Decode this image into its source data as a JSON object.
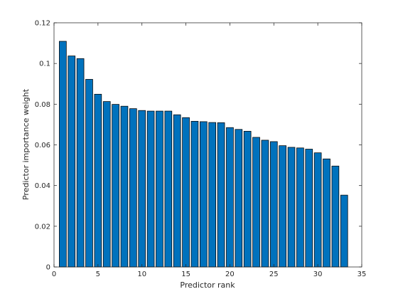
{
  "chart_data": {
    "type": "bar",
    "title": "",
    "xlabel": "Predictor rank",
    "ylabel": "Predictor importance weight",
    "xlim": [
      0,
      35
    ],
    "ylim": [
      0,
      0.12
    ],
    "xticks": [
      0,
      5,
      10,
      15,
      20,
      25,
      30,
      35
    ],
    "yticks": [
      0,
      0.02,
      0.04,
      0.06,
      0.08,
      0.1,
      0.12
    ],
    "xtick_labels": [
      "0",
      "5",
      "10",
      "15",
      "20",
      "25",
      "30",
      "35"
    ],
    "ytick_labels": [
      "0",
      "0.02",
      "0.04",
      "0.06",
      "0.08",
      "0.1",
      "0.12"
    ],
    "grid": false,
    "bar_color": "#0072BD",
    "x": [
      1,
      2,
      3,
      4,
      5,
      6,
      7,
      8,
      9,
      10,
      11,
      12,
      13,
      14,
      15,
      16,
      17,
      18,
      19,
      20,
      21,
      22,
      23,
      24,
      25,
      26,
      27,
      28,
      29,
      30,
      31,
      32,
      33
    ],
    "values": [
      0.1109,
      0.1037,
      0.1024,
      0.0922,
      0.0849,
      0.0813,
      0.0799,
      0.079,
      0.0778,
      0.0769,
      0.0766,
      0.0766,
      0.0766,
      0.0748,
      0.0734,
      0.0716,
      0.0714,
      0.071,
      0.0709,
      0.0685,
      0.0676,
      0.0667,
      0.0637,
      0.0623,
      0.0616,
      0.0596,
      0.0588,
      0.0585,
      0.0579,
      0.0561,
      0.0531,
      0.0496,
      0.0353
    ]
  }
}
